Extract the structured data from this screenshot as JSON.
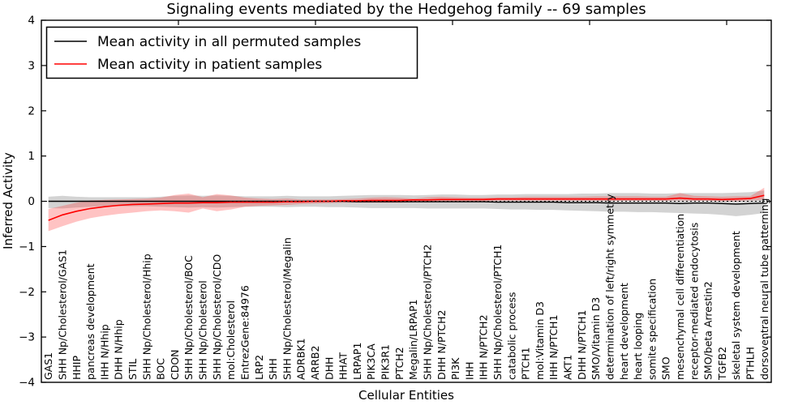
{
  "legend": {
    "items": [
      {
        "label": "Mean activity in all permuted samples",
        "color": "#000000"
      },
      {
        "label": "Mean activity in patient samples",
        "color": "#ff0000"
      }
    ]
  },
  "chart_data": {
    "type": "line",
    "title": "Signaling events mediated by the Hedgehog family -- 69 samples",
    "xlabel": "Cellular Entities",
    "ylabel": "Inferred Activity",
    "ylim": [
      -4,
      4
    ],
    "ytick_values": [
      4,
      3,
      2,
      1,
      0,
      -1,
      -2,
      -3,
      -4
    ],
    "ytick_labels": [
      "4",
      "3",
      "2",
      "1",
      "0",
      "−1",
      "−2",
      "−3",
      "−4"
    ],
    "grid": false,
    "legend_position": "upper left",
    "zero_reference_line": {
      "y": 0,
      "style": "dashed",
      "color": "#000000"
    },
    "categories": [
      "GAS1",
      "SHH Np/Cholesterol/GAS1",
      "HHIP",
      "pancreas development",
      "IHH N/Hhip",
      "DHH N/Hhip",
      "STIL",
      "SHH Np/Cholesterol/Hhip",
      "BOC",
      "CDON",
      "SHH Np/Cholesterol/BOC",
      "SHH Np/Cholesterol",
      "SHH Np/Cholesterol/CDO",
      "mol:Cholesterol",
      "EntrezGene:84976",
      "LRP2",
      "SHH",
      "SHH Np/Cholesterol/Megalin",
      "ADRBK1",
      "ARRB2",
      "DHH",
      "HHAT",
      "LRPAP1",
      "PIK3CA",
      "PIK3R1",
      "PTCH2",
      "Megalin/LRPAP1",
      "SHH Np/Cholesterol/PTCH2",
      "DHH N/PTCH2",
      "PI3K",
      "IHH",
      "IHH N/PTCH2",
      "SHH Np/Cholesterol/PTCH1",
      "catabolic process",
      "PTCH1",
      "mol:Vitamin D3",
      "IHH N/PTCH1",
      "AKT1",
      "DHH N/PTCH1",
      "SMO/Vitamin D3",
      "determination of left/right symmetry",
      "heart development",
      "heart looping",
      "somite specification",
      "SMO",
      "mesenchymal cell differentiation",
      "receptor-mediated endocytosis",
      "SMO/beta Arrestin2",
      "TGFB2",
      "skeletal system development",
      "PTHLH",
      "dorsoventral neural tube patterning"
    ],
    "series": [
      {
        "name": "Mean activity in all permuted samples",
        "color": "#000000",
        "band_color": "rgba(110,110,110,0.30)",
        "values": [
          0,
          0,
          0,
          0,
          0,
          0,
          0,
          0,
          0,
          0,
          0,
          0,
          0,
          0,
          0,
          0,
          0,
          0,
          0,
          0,
          0,
          0,
          -0.01,
          -0.01,
          -0.01,
          -0.01,
          -0.01,
          -0.01,
          -0.01,
          -0.01,
          -0.01,
          -0.01,
          -0.02,
          -0.02,
          -0.02,
          -0.02,
          -0.02,
          -0.03,
          -0.03,
          -0.03,
          -0.04,
          -0.04,
          -0.04,
          -0.04,
          -0.04,
          -0.05,
          -0.04,
          -0.04,
          -0.05,
          -0.06,
          -0.05,
          -0.04
        ],
        "band_upper": [
          0.1,
          0.12,
          0.1,
          0.09,
          0.09,
          0.09,
          0.09,
          0.09,
          0.1,
          0.12,
          0.13,
          0.12,
          0.13,
          0.12,
          0.11,
          0.11,
          0.11,
          0.12,
          0.11,
          0.11,
          0.11,
          0.12,
          0.13,
          0.14,
          0.14,
          0.14,
          0.13,
          0.14,
          0.15,
          0.15,
          0.14,
          0.14,
          0.15,
          0.15,
          0.16,
          0.16,
          0.16,
          0.16,
          0.17,
          0.17,
          0.18,
          0.18,
          0.18,
          0.17,
          0.17,
          0.18,
          0.18,
          0.18,
          0.18,
          0.19,
          0.2,
          0.24
        ],
        "band_lower": [
          -0.15,
          -0.16,
          -0.14,
          -0.12,
          -0.11,
          -0.11,
          -0.11,
          -0.11,
          -0.12,
          -0.13,
          -0.14,
          -0.13,
          -0.14,
          -0.13,
          -0.12,
          -0.12,
          -0.12,
          -0.13,
          -0.12,
          -0.12,
          -0.13,
          -0.13,
          -0.14,
          -0.15,
          -0.15,
          -0.15,
          -0.15,
          -0.16,
          -0.16,
          -0.16,
          -0.16,
          -0.16,
          -0.17,
          -0.18,
          -0.18,
          -0.19,
          -0.19,
          -0.2,
          -0.21,
          -0.22,
          -0.23,
          -0.23,
          -0.24,
          -0.24,
          -0.25,
          -0.26,
          -0.27,
          -0.28,
          -0.3,
          -0.33,
          -0.3,
          -0.26
        ]
      },
      {
        "name": "Mean activity in patient samples",
        "color": "#ff0000",
        "band_color": "rgba(255,40,40,0.28)",
        "values": [
          -0.42,
          -0.3,
          -0.22,
          -0.16,
          -0.12,
          -0.09,
          -0.07,
          -0.06,
          -0.05,
          -0.04,
          -0.04,
          -0.03,
          -0.03,
          -0.02,
          -0.02,
          -0.02,
          -0.02,
          -0.01,
          -0.01,
          0,
          0,
          0.01,
          0.01,
          0.02,
          0.02,
          0.02,
          0.03,
          0.03,
          0.04,
          0.04,
          0.04,
          0.04,
          0.05,
          0.05,
          0.05,
          0.05,
          0.05,
          0.05,
          0.05,
          0.05,
          0.05,
          0.05,
          0.05,
          0.05,
          0.05,
          0.07,
          0.05,
          0.05,
          0.04,
          0.05,
          0.06,
          0.13
        ],
        "band_upper": [
          -0.17,
          -0.1,
          -0.03,
          0.02,
          0.03,
          0.04,
          0.05,
          0.06,
          0.08,
          0.14,
          0.17,
          0.09,
          0.16,
          0.13,
          0.08,
          0.06,
          0.05,
          0.06,
          0.04,
          0.04,
          0.04,
          0.05,
          0.06,
          0.08,
          0.09,
          0.08,
          0.06,
          0.09,
          0.1,
          0.09,
          0.08,
          0.08,
          0.09,
          0.09,
          0.1,
          0.1,
          0.1,
          0.1,
          0.1,
          0.11,
          0.11,
          0.11,
          0.11,
          0.1,
          0.1,
          0.18,
          0.12,
          0.11,
          0.1,
          0.11,
          0.11,
          0.3
        ],
        "band_lower": [
          -0.66,
          -0.55,
          -0.45,
          -0.37,
          -0.32,
          -0.28,
          -0.25,
          -0.22,
          -0.2,
          -0.22,
          -0.25,
          -0.16,
          -0.22,
          -0.18,
          -0.12,
          -0.1,
          -0.09,
          -0.08,
          -0.06,
          -0.05,
          -0.04,
          -0.03,
          -0.03,
          -0.03,
          -0.03,
          -0.03,
          -0.02,
          -0.02,
          -0.01,
          -0.01,
          0,
          0,
          0.01,
          0.01,
          0.01,
          0.01,
          0.01,
          0.01,
          0.01,
          0.01,
          0.01,
          0.01,
          0.01,
          0.01,
          0.01,
          0.02,
          0.01,
          0.01,
          0,
          0,
          0.02,
          0.03
        ]
      }
    ]
  }
}
